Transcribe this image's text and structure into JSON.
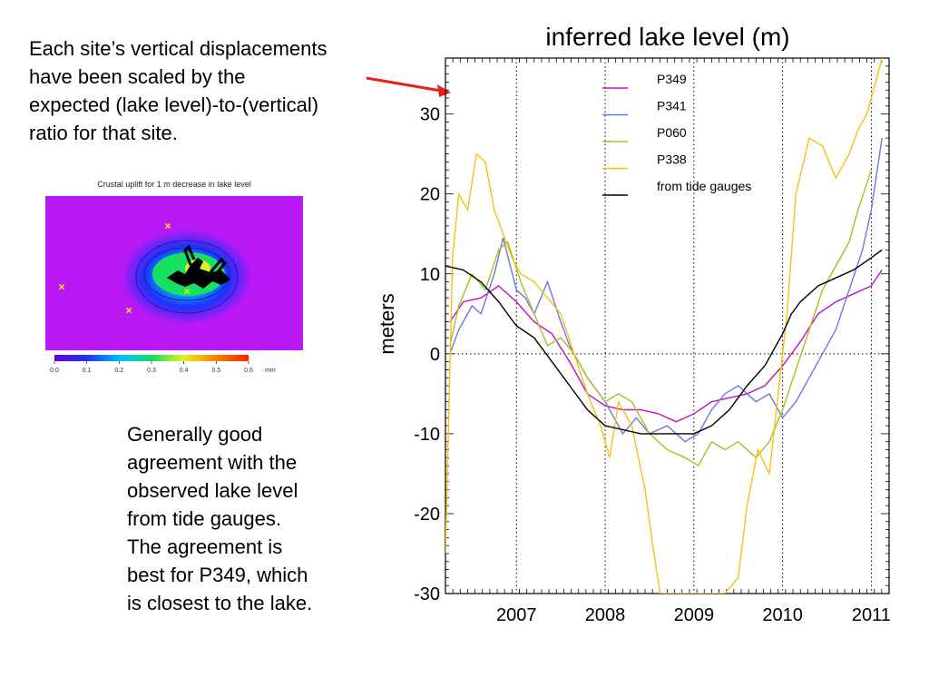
{
  "annotations": {
    "top_note": "Each site’s vertical displacements\nhave been scaled by the\nexpected (lake level)-to-(vertical)\nratio for that site.",
    "bottom_note": "Generally good\nagreement with the\nobserved lake level\nfrom tide gauges.\nThe agreement is\nbest for P349, which\nis closest to the lake.",
    "arrow_color": "#e8201c"
  },
  "inset_map": {
    "title": "Crustal uplift for 1 m decrease in lake level",
    "background_color": "#b819f5",
    "colorbar": {
      "ticks": [
        "0.0",
        "0.1",
        "0.2",
        "0.3",
        "0.4",
        "0.5",
        "0.6"
      ],
      "unit": "mm",
      "colors": [
        "#6a00d8",
        "#2030ff",
        "#00c0ff",
        "#10e060",
        "#e8f020",
        "#ff8000",
        "#ff2000"
      ]
    },
    "site_marker_color": "#ffee00",
    "site_marker_symbol": "×"
  },
  "chart_data": {
    "type": "line",
    "title": "inferred lake level (m)",
    "xlabel": "",
    "ylabel": "meters",
    "xlim": [
      2006.2,
      2011.2
    ],
    "ylim": [
      -30,
      37
    ],
    "x_ticks": [
      "2007",
      "2008",
      "2009",
      "2010",
      "2011"
    ],
    "y_ticks": [
      "-30",
      "-20",
      "-10",
      "0",
      "10",
      "20",
      "30"
    ],
    "vertical_grid_at": [
      2007,
      2008,
      2009,
      2010,
      2011
    ],
    "horizontal_grid_at": [
      0
    ],
    "grid": "dotted",
    "legend_position": "top-right",
    "series": [
      {
        "name": "P349",
        "color": "#c010c0",
        "x": [
          2006.25,
          2006.4,
          2006.6,
          2006.8,
          2007.0,
          2007.2,
          2007.4,
          2007.6,
          2007.8,
          2008.0,
          2008.2,
          2008.4,
          2008.6,
          2008.8,
          2009.0,
          2009.2,
          2009.4,
          2009.6,
          2009.8,
          2010.0,
          2010.2,
          2010.4,
          2010.6,
          2010.8,
          2011.0,
          2011.12
        ],
        "values": [
          4,
          6.5,
          7,
          8.5,
          6.5,
          4,
          2.5,
          -1,
          -5,
          -6.5,
          -7,
          -7,
          -7.5,
          -8.5,
          -7.5,
          -6,
          -5.5,
          -5,
          -4,
          -1.5,
          1.5,
          5,
          6.5,
          7.5,
          8.5,
          10.5
        ]
      },
      {
        "name": "P341",
        "color": "#6878e8",
        "x": [
          2006.25,
          2006.35,
          2006.5,
          2006.6,
          2006.75,
          2006.85,
          2007.0,
          2007.1,
          2007.2,
          2007.35,
          2007.5,
          2007.6,
          2007.8,
          2008.0,
          2008.2,
          2008.35,
          2008.5,
          2008.7,
          2008.9,
          2009.05,
          2009.2,
          2009.35,
          2009.5,
          2009.7,
          2009.85,
          2010.0,
          2010.15,
          2010.3,
          2010.45,
          2010.6,
          2010.75,
          2010.9,
          2011.0,
          2011.12
        ],
        "values": [
          0,
          3,
          6,
          5,
          10,
          14.5,
          8,
          7,
          5,
          9,
          4,
          1,
          -3,
          -6,
          -10,
          -8,
          -10,
          -9,
          -11,
          -10,
          -7,
          -5,
          -4,
          -6,
          -5,
          -8,
          -6,
          -3,
          0,
          3,
          8,
          13,
          18,
          27
        ]
      },
      {
        "name": "P060",
        "color": "#a8c020",
        "x": [
          2006.25,
          2006.35,
          2006.5,
          2006.65,
          2006.8,
          2006.9,
          2007.05,
          2007.2,
          2007.35,
          2007.5,
          2007.65,
          2007.8,
          2008.0,
          2008.15,
          2008.3,
          2008.5,
          2008.7,
          2008.9,
          2009.05,
          2009.2,
          2009.35,
          2009.5,
          2009.7,
          2009.85,
          2010.0,
          2010.15,
          2010.3,
          2010.45,
          2010.6,
          2010.75,
          2010.85,
          2011.0
        ],
        "values": [
          1,
          6,
          10,
          8,
          13,
          14,
          9,
          5,
          1,
          2,
          0,
          -3,
          -6,
          -5,
          -6,
          -10,
          -12,
          -13,
          -14,
          -11,
          -12,
          -11,
          -13,
          -11,
          -7,
          -2,
          3,
          8,
          11,
          14,
          18,
          23
        ]
      },
      {
        "name": "P338",
        "color": "#f8c010",
        "x": [
          2006.2,
          2006.28,
          2006.35,
          2006.45,
          2006.55,
          2006.65,
          2006.75,
          2006.85,
          2006.95,
          2007.05,
          2007.2,
          2007.35,
          2007.5,
          2007.65,
          2007.8,
          2007.95,
          2008.05,
          2008.15,
          2008.3,
          2008.45,
          2008.55,
          2008.62,
          2008.68,
          2008.8,
          2008.9,
          2009.0,
          2009.1,
          2009.2,
          2009.35,
          2009.5,
          2009.6,
          2009.72,
          2009.85,
          2009.95,
          2010.05,
          2010.15,
          2010.3,
          2010.45,
          2010.6,
          2010.75,
          2010.85,
          2010.95,
          2011.05,
          2011.12
        ],
        "values": [
          -25,
          12,
          20,
          18,
          25,
          24,
          18,
          15,
          12,
          10,
          9,
          7,
          5,
          0,
          -5,
          -9,
          -13,
          -6,
          -9,
          -17,
          -25,
          -30,
          -30,
          -30,
          -30,
          -30,
          -30,
          -30,
          -30,
          -28,
          -19,
          -12,
          -15,
          -5,
          5,
          20,
          27,
          26,
          22,
          25,
          28,
          30,
          34,
          37
        ]
      },
      {
        "name": "from tide gauges",
        "color": "#000000",
        "x": [
          2006.2,
          2006.4,
          2006.6,
          2006.8,
          2007.0,
          2007.2,
          2007.4,
          2007.6,
          2007.8,
          2008.0,
          2008.2,
          2008.4,
          2008.6,
          2008.8,
          2009.0,
          2009.2,
          2009.4,
          2009.6,
          2009.8,
          2010.0,
          2010.1,
          2010.2,
          2010.4,
          2010.6,
          2010.8,
          2011.0,
          2011.12
        ],
        "values": [
          11,
          10.5,
          9,
          6.5,
          3.5,
          2,
          -1,
          -4,
          -7,
          -9,
          -9.5,
          -10,
          -10,
          -10,
          -10,
          -9,
          -7,
          -4,
          -1.5,
          2.5,
          5,
          6.5,
          8.5,
          9.5,
          10.5,
          12,
          13
        ]
      }
    ]
  }
}
